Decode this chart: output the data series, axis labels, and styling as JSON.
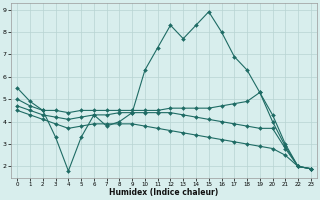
{
  "x": [
    0,
    1,
    2,
    3,
    4,
    5,
    6,
    7,
    8,
    9,
    10,
    11,
    12,
    13,
    14,
    15,
    16,
    17,
    18,
    19,
    20,
    21,
    22,
    23
  ],
  "line1": [
    5.5,
    4.9,
    4.5,
    3.3,
    1.8,
    3.3,
    4.3,
    3.8,
    4.0,
    4.4,
    6.3,
    7.3,
    8.3,
    7.7,
    8.3,
    8.9,
    8.0,
    6.9,
    6.3,
    5.3,
    4.0,
    2.9,
    2.0,
    1.9
  ],
  "line2": [
    5.0,
    4.7,
    4.5,
    4.5,
    4.4,
    4.5,
    4.5,
    4.5,
    4.5,
    4.5,
    4.5,
    4.5,
    4.6,
    4.6,
    4.6,
    4.6,
    4.7,
    4.8,
    4.9,
    5.3,
    4.3,
    3.0,
    2.0,
    1.9
  ],
  "line3": [
    4.7,
    4.5,
    4.3,
    4.2,
    4.1,
    4.2,
    4.3,
    4.3,
    4.4,
    4.4,
    4.4,
    4.4,
    4.4,
    4.3,
    4.2,
    4.1,
    4.0,
    3.9,
    3.8,
    3.7,
    3.7,
    2.8,
    2.0,
    1.9
  ],
  "line4": [
    4.5,
    4.3,
    4.1,
    3.9,
    3.7,
    3.8,
    3.9,
    3.9,
    3.9,
    3.9,
    3.8,
    3.7,
    3.6,
    3.5,
    3.4,
    3.3,
    3.2,
    3.1,
    3.0,
    2.9,
    2.8,
    2.5,
    2.0,
    1.9
  ],
  "background_color": "#d8eeed",
  "grid_color": "#b8d4d2",
  "line_color": "#1e6b64",
  "xlabel": "Humidex (Indice chaleur)",
  "ylim": [
    1.5,
    9.3
  ],
  "xlim": [
    -0.5,
    23.5
  ],
  "yticks": [
    2,
    3,
    4,
    5,
    6,
    7,
    8,
    9
  ],
  "xticks": [
    0,
    1,
    2,
    3,
    4,
    5,
    6,
    7,
    8,
    9,
    10,
    11,
    12,
    13,
    14,
    15,
    16,
    17,
    18,
    19,
    20,
    21,
    22,
    23
  ],
  "marker_x_line1": [
    0,
    1,
    2,
    3,
    4,
    5,
    6,
    7,
    8,
    9,
    10,
    11,
    12,
    13,
    14,
    15,
    16,
    17,
    18,
    19,
    20,
    21,
    22,
    23
  ],
  "marker_x_line2": [
    0,
    1,
    9,
    14,
    19,
    20,
    21,
    22,
    23
  ],
  "marker_x_line3": [
    0,
    1,
    6,
    7,
    8,
    9,
    19,
    20,
    21,
    22,
    23
  ],
  "marker_x_line4": [
    0,
    1,
    5,
    6,
    7,
    8,
    9,
    19,
    20,
    21,
    22,
    23
  ]
}
